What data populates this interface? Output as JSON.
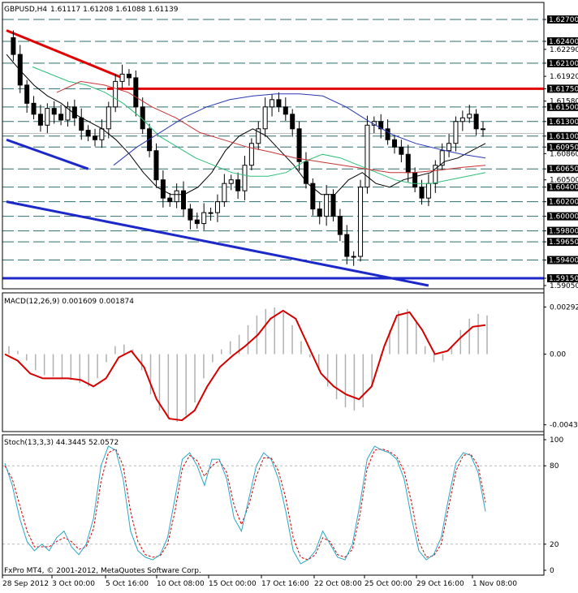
{
  "chart_data": [
    {
      "type": "candlestick",
      "panel": "price",
      "title": "GBPUSD,H4",
      "ohlc": [
        "1.61117",
        "1.61208",
        "1.61088",
        "1.61139"
      ],
      "current_price_label": "1.61139",
      "ylim": [
        1.5905,
        1.628
      ],
      "yticks": [
        "1.62700",
        "1.62400",
        "1.62290",
        "1.62100",
        "1.61920",
        "1.61750",
        "1.61580",
        "1.61500",
        "1.61300",
        "1.61100",
        "1.60950",
        "1.60860",
        "1.60650",
        "1.60500",
        "1.60400",
        "1.60200",
        "1.60000",
        "1.59800",
        "1.59650",
        "1.59400",
        "1.59150",
        "1.59050"
      ],
      "highlighted_levels": [
        1.627,
        1.624,
        1.621,
        1.6175,
        1.615,
        1.613,
        1.611,
        1.6095,
        1.6065,
        1.604,
        1.602,
        1.6,
        1.598,
        1.5965,
        1.594,
        1.5915
      ],
      "horizontal_lines": [
        1.6175,
        1.5915
      ],
      "close_path": [
        1.6245,
        1.6222,
        1.618,
        1.6155,
        1.614,
        1.6125,
        1.6148,
        1.614,
        1.6132,
        1.615,
        1.6135,
        1.6118,
        1.611,
        1.6105,
        1.612,
        1.615,
        1.6185,
        1.6195,
        1.619,
        1.615,
        1.612,
        1.609,
        1.605,
        1.6025,
        1.602,
        1.6035,
        1.601,
        1.5995,
        1.599,
        1.6005,
        1.6005,
        1.602,
        1.6045,
        1.605,
        1.6035,
        1.607,
        1.61,
        1.612,
        1.615,
        1.616,
        1.615,
        1.614,
        1.612,
        1.6075,
        1.6045,
        1.601,
        1.6,
        1.603,
        1.6,
        1.5975,
        1.5945,
        1.5945,
        1.604,
        1.6125,
        1.613,
        1.612,
        1.6105,
        1.6095,
        1.6085,
        1.606,
        1.604,
        1.6025,
        1.6045,
        1.607,
        1.609,
        1.61,
        1.613,
        1.6135,
        1.614,
        1.612,
        1.612
      ],
      "moving_averages": [
        {
          "color": "#000000",
          "values": [
            1.6222,
            1.62,
            1.618,
            1.6165,
            1.6155,
            1.614,
            1.613,
            1.612,
            1.6105,
            1.6085,
            1.606,
            1.604,
            1.603,
            1.603,
            1.604,
            1.606,
            1.609,
            1.611,
            1.612,
            1.611,
            1.609,
            1.607,
            1.6045,
            1.603,
            1.603,
            1.605,
            1.606,
            1.6045,
            1.604,
            1.605,
            1.6055,
            1.606,
            1.6075,
            1.608,
            1.609,
            1.61
          ]
        },
        {
          "color": "#2dbf7a",
          "values": [
            1.6205,
            1.6195,
            1.6185,
            1.618,
            1.617,
            1.6155,
            1.6135,
            1.611,
            1.6095,
            1.608,
            1.607,
            1.606,
            1.6055,
            1.6055,
            1.606,
            1.6075,
            1.6085,
            1.608,
            1.607,
            1.606,
            1.605,
            1.6045,
            1.6045,
            1.605,
            1.6055,
            1.606
          ]
        },
        {
          "color": "#c83232",
          "values": [
            1.617,
            1.6185,
            1.618,
            1.617,
            1.615,
            1.6135,
            1.6115,
            1.6105,
            1.6095,
            1.6088,
            1.608,
            1.6075,
            1.607,
            1.6065,
            1.606,
            1.606,
            1.6063,
            1.6067,
            1.607
          ]
        },
        {
          "color": "#2838b0",
          "values": [
            1.607,
            1.6095,
            1.6115,
            1.6135,
            1.615,
            1.616,
            1.6165,
            1.6168,
            1.6168,
            1.6165,
            1.615,
            1.613,
            1.6112,
            1.61,
            1.6092,
            1.6085,
            1.608
          ]
        }
      ],
      "trendlines": [
        {
          "color": "#e00000",
          "from": [
            0,
            1.6255
          ],
          "to": [
            17,
            1.619
          ]
        },
        {
          "color": "#1c28c8",
          "from": [
            0,
            1.6105
          ],
          "to": [
            12,
            1.6065
          ]
        },
        {
          "color": "#1c28c8",
          "from": [
            0,
            1.602
          ],
          "to": [
            62,
            1.5905
          ]
        }
      ]
    },
    {
      "type": "histogram+line",
      "panel": "macd",
      "title": "MACD(12,26,9) 0.001609 0.001874",
      "ylim": [
        -0.0045,
        0.0031
      ],
      "yticks": [
        "0.002924",
        "0.00",
        "-0.004382"
      ],
      "histogram": [
        0.0005,
        0.0002,
        -0.0004,
        -0.001,
        -0.0013,
        -0.0014,
        -0.0015,
        -0.0016,
        -0.0018,
        -0.002,
        -0.0015,
        -0.0005,
        0.0005,
        0.0006,
        0.0003,
        -0.001,
        -0.0025,
        -0.0035,
        -0.004,
        -0.0042,
        -0.0038,
        -0.003,
        -0.0015,
        -0.0005,
        0.0003,
        0.0008,
        0.0012,
        0.0018,
        0.0024,
        0.0028,
        0.0029,
        0.0026,
        0.0018,
        0.0008,
        -0.0002,
        -0.001,
        -0.002,
        -0.0028,
        -0.0033,
        -0.0035,
        -0.0033,
        -0.002,
        -0.0002,
        0.0015,
        0.0027,
        0.0028,
        0.002,
        0.0005,
        -0.0005,
        -0.0004,
        0.0005,
        0.0015,
        0.0022,
        0.0025,
        0.0024
      ],
      "signal": [
        0.0,
        -0.0004,
        -0.0012,
        -0.0015,
        -0.0015,
        -0.0015,
        -0.0016,
        -0.002,
        -0.0015,
        -0.0002,
        0.0002,
        -0.0008,
        -0.0028,
        -0.004,
        -0.0041,
        -0.0035,
        -0.002,
        -0.0008,
        -0.0001,
        0.0005,
        0.0012,
        0.0022,
        0.0027,
        0.0022,
        0.0005,
        -0.0012,
        -0.002,
        -0.0025,
        -0.0028,
        -0.002,
        0.0005,
        0.0024,
        0.0026,
        0.0015,
        0.0,
        0.0002,
        0.001,
        0.0017,
        0.0018
      ]
    },
    {
      "type": "line",
      "panel": "stochastic",
      "title": "Stoch(13,3,3) 44.3445 52.0572",
      "ylim": [
        0,
        100
      ],
      "yticks": [
        "100",
        "80",
        "20",
        "0"
      ],
      "main": [
        82,
        65,
        40,
        22,
        15,
        20,
        15,
        25,
        30,
        18,
        12,
        20,
        40,
        80,
        95,
        92,
        70,
        30,
        15,
        10,
        8,
        12,
        25,
        55,
        85,
        90,
        80,
        65,
        85,
        85,
        70,
        40,
        30,
        55,
        80,
        90,
        85,
        70,
        45,
        15,
        5,
        8,
        15,
        30,
        20,
        10,
        8,
        20,
        50,
        85,
        95,
        92,
        90,
        85,
        70,
        40,
        15,
        8,
        12,
        25,
        55,
        82,
        90,
        88,
        75,
        45
      ],
      "signal": [
        80,
        70,
        50,
        30,
        18,
        18,
        18,
        22,
        25,
        22,
        16,
        18,
        32,
        68,
        90,
        93,
        80,
        45,
        22,
        12,
        10,
        11,
        20,
        45,
        78,
        88,
        84,
        72,
        80,
        84,
        75,
        50,
        35,
        50,
        72,
        86,
        86,
        76,
        55,
        25,
        10,
        8,
        12,
        25,
        22,
        12,
        10,
        16,
        42,
        78,
        92,
        93,
        91,
        87,
        76,
        52,
        22,
        10,
        11,
        20,
        48,
        76,
        88,
        89,
        80,
        52
      ]
    }
  ],
  "x_axis_labels": [
    "28 Sep 2012",
    "3 Oct 00:00",
    "5 Oct 16:00",
    "10 Oct 08:00",
    "15 Oct 00:00",
    "17 Oct 16:00",
    "22 Oct 08:00",
    "25 Oct 00:00",
    "29 Oct 16:00",
    "1 Nov 08:00"
  ],
  "watermark": "FxPro MT4, © 2001-2012, MetaQuotes Software Corp.",
  "colors": {
    "macd_line": "#d40000",
    "stoch_main": "#2aa6c6",
    "stoch_signal": "#d40000",
    "histogram": "#b0b0b0",
    "grid": "#2f6f6f",
    "axis_highlight": "#000000"
  }
}
